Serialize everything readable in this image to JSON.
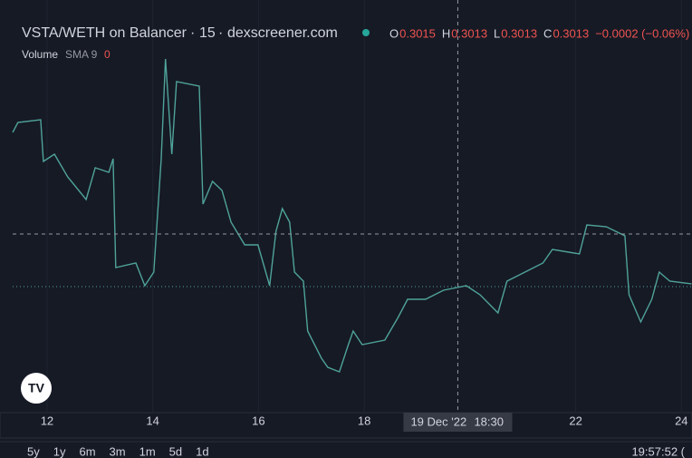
{
  "chart_data": {
    "type": "line",
    "title": "VSTA/WETH on Balancer",
    "interval": "15",
    "source": "dexscreener.com",
    "ohlc": [
      {
        "label": "O",
        "value": 0.3015
      },
      {
        "label": "H",
        "value": 0.3013
      },
      {
        "label": "L",
        "value": 0.3013
      },
      {
        "label": "C",
        "value": 0.3013
      }
    ],
    "change": "−0.0002 (−0.06%)",
    "volume_label": "Volume",
    "volume_sma": "SMA 9",
    "volume_value": 0,
    "crosshair_label": "19 Dec '22",
    "crosshair_time": "18:30",
    "crosshair_x": 19.77,
    "x": [
      11.35,
      11.45,
      11.88,
      11.93,
      12.14,
      12.39,
      12.74,
      12.91,
      13.17,
      13.25,
      13.3,
      13.68,
      13.85,
      14.02,
      14.16,
      14.24,
      14.36,
      14.45,
      14.88,
      14.95,
      15.13,
      15.31,
      15.48,
      15.74,
      15.99,
      16.21,
      16.33,
      16.45,
      16.59,
      16.68,
      16.85,
      16.93,
      17.19,
      17.31,
      17.53,
      17.7,
      17.79,
      17.96,
      18.39,
      18.64,
      18.82,
      19.16,
      19.5,
      19.93,
      20.19,
      20.53,
      20.7,
      21.04,
      21.38,
      21.56,
      22.07,
      22.21,
      22.58,
      22.93,
      23.01,
      23.23,
      23.44,
      23.58,
      23.78,
      24.19
    ],
    "series": [
      {
        "name": "VSTA/WETH",
        "color": "#4fa39a",
        "values": [
          0.3183,
          0.3194,
          0.3197,
          0.3151,
          0.3159,
          0.3134,
          0.3109,
          0.3144,
          0.3139,
          0.3154,
          0.3034,
          0.3039,
          0.3014,
          0.3029,
          0.3154,
          0.3264,
          0.3159,
          0.3239,
          0.3234,
          0.3104,
          0.3129,
          0.3119,
          0.3084,
          0.3059,
          0.3059,
          0.3014,
          0.3074,
          0.3099,
          0.3084,
          0.3029,
          0.3019,
          0.2964,
          0.2934,
          0.2924,
          0.2919,
          0.2949,
          0.2964,
          0.2949,
          0.2954,
          0.2979,
          0.2999,
          0.2999,
          0.3009,
          0.3014,
          0.3004,
          0.2984,
          0.3019,
          0.3029,
          0.3039,
          0.3054,
          0.3049,
          0.3081,
          0.3079,
          0.3069,
          0.3004,
          0.2974,
          0.2999,
          0.3029,
          0.3019,
          0.3016
        ]
      }
    ],
    "xlim": [
      11.35,
      24.2
    ],
    "xticks": [
      12,
      14,
      16,
      18,
      22,
      24
    ],
    "ylim": [
      0.2874,
      0.3289
    ],
    "grid": true
  },
  "toolbar": {
    "ranges": [
      "5y",
      "1y",
      "6m",
      "3m",
      "1m",
      "5d",
      "1d"
    ],
    "clock": "19:57:52 ("
  }
}
